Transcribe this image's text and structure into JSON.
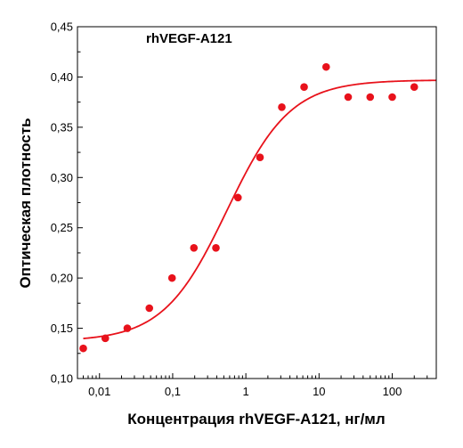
{
  "chart_data": {
    "type": "scatter",
    "title": "rhVEGF-A121",
    "xlabel": "Концентрация rhVEGF-A121, нг/мл",
    "ylabel": "Оптическая плотность",
    "x_scale": "log",
    "xlim": [
      0.005,
      400
    ],
    "ylim": [
      0.1,
      0.45
    ],
    "x_ticks": [
      {
        "value": 0.01,
        "label": "0,01"
      },
      {
        "value": 0.1,
        "label": "0,1"
      },
      {
        "value": 1,
        "label": "1"
      },
      {
        "value": 10,
        "label": "10"
      },
      {
        "value": 100,
        "label": "100"
      }
    ],
    "y_ticks": [
      {
        "value": 0.1,
        "label": "0,10"
      },
      {
        "value": 0.15,
        "label": "0,15"
      },
      {
        "value": 0.2,
        "label": "0,20"
      },
      {
        "value": 0.25,
        "label": "0,25"
      },
      {
        "value": 0.3,
        "label": "0,30"
      },
      {
        "value": 0.35,
        "label": "0,35"
      },
      {
        "value": 0.4,
        "label": "0,40"
      },
      {
        "value": 0.45,
        "label": "0,45"
      }
    ],
    "grid": false,
    "series": [
      {
        "kind": "points",
        "x": [
          0.006,
          0.012,
          0.024,
          0.048,
          0.098,
          0.195,
          0.39,
          0.78,
          1.56,
          3.1,
          6.25,
          12.5,
          25,
          50,
          100,
          200
        ],
        "y": [
          0.13,
          0.14,
          0.15,
          0.17,
          0.2,
          0.23,
          0.23,
          0.28,
          0.32,
          0.37,
          0.39,
          0.41,
          0.38,
          0.38,
          0.38,
          0.39
        ],
        "color": "#e8121b"
      },
      {
        "kind": "fit_curve",
        "model": "4PL",
        "bottom": 0.137,
        "top": 0.397,
        "ec50": 0.55,
        "hill": 1.0,
        "x_range": [
          0.006,
          400
        ],
        "color": "#e8121b"
      }
    ]
  }
}
